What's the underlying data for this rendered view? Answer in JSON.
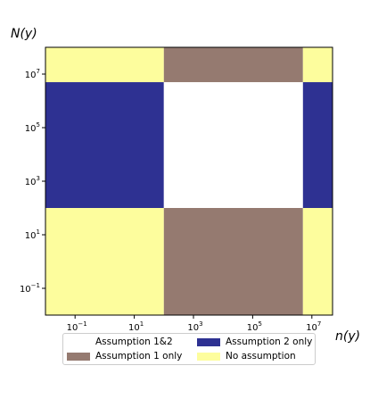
{
  "chart_data": {
    "type": "heatmap",
    "xscale": "log",
    "yscale": "log",
    "xlim": [
      0.01,
      50000000
    ],
    "ylim": [
      0.01,
      100000000
    ],
    "xlabel": "n(y)",
    "ylabel": "N(y)",
    "xticks": [
      {
        "value": 0.1,
        "base": "10",
        "exp": "−1"
      },
      {
        "value": 10,
        "base": "10",
        "exp": "1"
      },
      {
        "value": 1000,
        "base": "10",
        "exp": "3"
      },
      {
        "value": 100000,
        "base": "10",
        "exp": "5"
      },
      {
        "value": 10000000,
        "base": "10",
        "exp": "7"
      }
    ],
    "yticks": [
      {
        "value": 0.1,
        "base": "10",
        "exp": "−1"
      },
      {
        "value": 10,
        "base": "10",
        "exp": "1"
      },
      {
        "value": 1000,
        "base": "10",
        "exp": "3"
      },
      {
        "value": 100000,
        "base": "10",
        "exp": "5"
      },
      {
        "value": 10000000,
        "base": "10",
        "exp": "7"
      }
    ],
    "x_boundaries": [
      0.01,
      100,
      5000000,
      50000000
    ],
    "y_boundaries": [
      0.01,
      100,
      5000000,
      100000000
    ],
    "regions": [
      {
        "x": [
          0.01,
          100
        ],
        "y": [
          0.01,
          100
        ],
        "category": "No assumption"
      },
      {
        "x": [
          100,
          5000000
        ],
        "y": [
          0.01,
          100
        ],
        "category": "Assumption 1 only"
      },
      {
        "x": [
          5000000,
          50000000
        ],
        "y": [
          0.01,
          100
        ],
        "category": "No assumption"
      },
      {
        "x": [
          0.01,
          100
        ],
        "y": [
          100,
          5000000
        ],
        "category": "Assumption 2 only"
      },
      {
        "x": [
          100,
          5000000
        ],
        "y": [
          100,
          5000000
        ],
        "category": "Assumption 1&2"
      },
      {
        "x": [
          5000000,
          50000000
        ],
        "y": [
          100,
          5000000
        ],
        "category": "Assumption 2 only"
      },
      {
        "x": [
          0.01,
          100
        ],
        "y": [
          5000000,
          100000000
        ],
        "category": "No assumption"
      },
      {
        "x": [
          100,
          5000000
        ],
        "y": [
          5000000,
          100000000
        ],
        "category": "Assumption 1 only"
      },
      {
        "x": [
          5000000,
          50000000
        ],
        "y": [
          5000000,
          100000000
        ],
        "category": "No assumption"
      }
    ],
    "legend": {
      "placement": "below",
      "entries": [
        {
          "label": "Assumption 1&2",
          "color": "#ffffff"
        },
        {
          "label": "Assumption 2 only",
          "color": "#2e3192"
        },
        {
          "label": "Assumption 1 only",
          "color": "#957a70"
        },
        {
          "label": "No assumption",
          "color": "#fdfd9d"
        }
      ]
    },
    "colors": {
      "Assumption 1&2": "#ffffff",
      "Assumption 2 only": "#2e3192",
      "Assumption 1 only": "#957a70",
      "No assumption": "#fdfd9d"
    },
    "grid": false
  }
}
